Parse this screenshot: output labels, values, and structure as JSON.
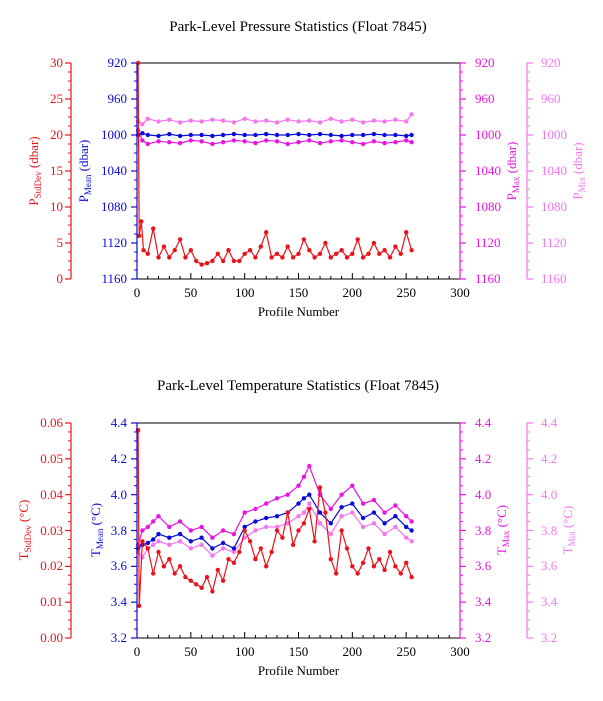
{
  "charts": [
    {
      "title": "Park-Level Pressure Statistics (Float 7845)",
      "xlabel": "Profile Number",
      "xticks": [
        "0",
        "50",
        "100",
        "150",
        "200",
        "250",
        "300"
      ],
      "left_outer_axis": {
        "label_main": "P",
        "label_sub": "StdDev",
        "label_unit": " (dbar)",
        "ticks": [
          "30",
          "25",
          "20",
          "15",
          "10",
          "5",
          "0"
        ],
        "color": "#e8141c"
      },
      "left_inner_axis": {
        "label_main": "P",
        "label_sub": "Mean",
        "label_unit": " (dbar)",
        "ticks": [
          "920",
          "960",
          "1000",
          "1040",
          "1080",
          "1120",
          "1160"
        ],
        "color": "#0a0ad8"
      },
      "right_inner_axis": {
        "label_main": "P",
        "label_sub": "Max",
        "label_unit": " (dbar)",
        "ticks": [
          "920",
          "960",
          "1000",
          "1040",
          "1080",
          "1120",
          "1160"
        ],
        "color": "#e815e0"
      },
      "right_outer_axis": {
        "label_main": "P",
        "label_sub": "Min",
        "label_unit": " (dbar)",
        "ticks": [
          "920",
          "960",
          "1000",
          "1040",
          "1080",
          "1120",
          "1160"
        ],
        "color": "#f576f0"
      }
    },
    {
      "title": "Park-Level Temperature Statistics (Float 7845)",
      "xlabel": "Profile Number",
      "xticks": [
        "0",
        "50",
        "100",
        "150",
        "200",
        "250",
        "300"
      ],
      "left_outer_axis": {
        "label_main": "T",
        "label_sub": "StdDev",
        "label_unit": " (°C)",
        "ticks": [
          "0.06",
          "0.05",
          "0.04",
          "0.03",
          "0.02",
          "0.01",
          "0.00"
        ],
        "color": "#e8141c"
      },
      "left_inner_axis": {
        "label_main": "T",
        "label_sub": "Mean",
        "label_unit": " (°C)",
        "ticks": [
          "4.4",
          "4.2",
          "4.0",
          "3.8",
          "3.6",
          "3.4",
          "3.2"
        ],
        "color": "#0a0ad8"
      },
      "right_inner_axis": {
        "label_main": "T",
        "label_sub": "Max",
        "label_unit": " (°C)",
        "ticks": [
          "4.4",
          "4.2",
          "4.0",
          "3.8",
          "3.6",
          "3.4",
          "3.2"
        ],
        "color": "#e815e0"
      },
      "right_outer_axis": {
        "label_main": "T",
        "label_sub": "Min",
        "label_unit": " (°C)",
        "ticks": [
          "4.4",
          "4.2",
          "4.0",
          "3.8",
          "3.6",
          "3.4",
          "3.2"
        ],
        "color": "#f576f0"
      }
    }
  ],
  "chart_data": [
    {
      "type": "line",
      "title": "Park-Level Pressure Statistics (Float 7845)",
      "xlabel": "Profile Number",
      "xlim": [
        0,
        300
      ],
      "series": [
        {
          "name": "P StdDev (dbar)",
          "axis": "StdDev",
          "ylim": [
            0,
            30
          ],
          "color": "#e8141c",
          "x": [
            1,
            2,
            4,
            6,
            10,
            15,
            20,
            25,
            30,
            35,
            40,
            45,
            50,
            55,
            60,
            65,
            70,
            75,
            80,
            85,
            90,
            95,
            100,
            105,
            110,
            115,
            120,
            125,
            130,
            135,
            140,
            145,
            150,
            155,
            160,
            165,
            170,
            175,
            180,
            185,
            190,
            195,
            200,
            205,
            210,
            215,
            220,
            225,
            230,
            235,
            240,
            245,
            250,
            255
          ],
          "values": [
            30,
            6,
            8,
            4,
            3.5,
            7,
            3,
            4.5,
            3,
            4,
            5.5,
            3,
            4,
            2.5,
            2,
            2.2,
            2.5,
            3.5,
            2.5,
            4,
            2.5,
            2.5,
            3.5,
            4,
            3,
            4.5,
            6.5,
            3,
            3.5,
            3,
            4.5,
            3,
            3.5,
            5.5,
            4,
            3,
            3.5,
            5,
            3,
            3.5,
            4,
            3,
            3.5,
            5.5,
            3,
            3.5,
            5,
            3.5,
            4,
            3,
            4.5,
            3.5,
            6.5,
            4
          ]
        },
        {
          "name": "P Mean (dbar)",
          "axis": "Mean",
          "ylim": [
            1160,
            920
          ],
          "color": "#0a0ad8",
          "x": [
            1,
            5,
            10,
            20,
            30,
            40,
            50,
            60,
            70,
            80,
            90,
            100,
            110,
            120,
            130,
            140,
            150,
            160,
            170,
            180,
            190,
            200,
            210,
            220,
            230,
            240,
            250,
            255
          ],
          "values": [
            1000,
            998,
            1000,
            1001,
            999,
            1001,
            1000,
            1000,
            1001,
            1000,
            999,
            1000,
            1000,
            999,
            1000,
            1000,
            999,
            1000,
            999,
            1000,
            1001,
            1000,
            1000,
            999,
            1000,
            1000,
            1001,
            1000
          ]
        },
        {
          "name": "P Max (dbar)",
          "axis": "Max",
          "ylim": [
            1160,
            920
          ],
          "color": "#e815e0",
          "x": [
            1,
            5,
            10,
            20,
            30,
            40,
            50,
            60,
            70,
            80,
            90,
            100,
            110,
            120,
            130,
            140,
            150,
            160,
            170,
            180,
            190,
            200,
            210,
            220,
            230,
            240,
            250,
            255
          ],
          "values": [
            995,
            1006,
            1010,
            1007,
            1008,
            1009,
            1006,
            1007,
            1010,
            1008,
            1006,
            1007,
            1009,
            1006,
            1007,
            1010,
            1008,
            1006,
            1009,
            1007,
            1006,
            1008,
            1010,
            1007,
            1009,
            1008,
            1006,
            1008
          ]
        },
        {
          "name": "P Min (dbar)",
          "axis": "Min",
          "ylim": [
            1160,
            920
          ],
          "color": "#f576f0",
          "x": [
            1,
            5,
            10,
            20,
            30,
            40,
            50,
            60,
            70,
            80,
            90,
            100,
            110,
            120,
            130,
            140,
            150,
            160,
            170,
            180,
            190,
            200,
            210,
            220,
            230,
            240,
            250,
            255
          ],
          "values": [
            985,
            988,
            982,
            985,
            983,
            986,
            984,
            985,
            983,
            984,
            986,
            982,
            985,
            984,
            986,
            983,
            985,
            984,
            986,
            982,
            985,
            983,
            986,
            984,
            985,
            983,
            985,
            977
          ]
        }
      ]
    },
    {
      "type": "line",
      "title": "Park-Level Temperature Statistics (Float 7845)",
      "xlabel": "Profile Number",
      "xlim": [
        0,
        300
      ],
      "series": [
        {
          "name": "T StdDev (°C)",
          "axis": "StdDev",
          "ylim": [
            0,
            0.06
          ],
          "color": "#e8141c",
          "x": [
            1,
            2,
            5,
            10,
            15,
            20,
            25,
            30,
            35,
            40,
            45,
            50,
            55,
            60,
            65,
            70,
            75,
            80,
            85,
            90,
            95,
            100,
            105,
            110,
            115,
            120,
            125,
            130,
            135,
            140,
            145,
            150,
            155,
            160,
            165,
            170,
            175,
            180,
            185,
            190,
            195,
            200,
            205,
            210,
            215,
            220,
            225,
            230,
            235,
            240,
            245,
            250,
            255
          ],
          "values": [
            0.058,
            0.009,
            0.027,
            0.025,
            0.018,
            0.024,
            0.02,
            0.022,
            0.018,
            0.02,
            0.017,
            0.016,
            0.015,
            0.014,
            0.017,
            0.013,
            0.019,
            0.016,
            0.022,
            0.021,
            0.024,
            0.03,
            0.027,
            0.022,
            0.025,
            0.02,
            0.024,
            0.03,
            0.028,
            0.035,
            0.026,
            0.03,
            0.032,
            0.036,
            0.027,
            0.042,
            0.035,
            0.022,
            0.018,
            0.03,
            0.025,
            0.02,
            0.018,
            0.021,
            0.025,
            0.02,
            0.022,
            0.019,
            0.024,
            0.02,
            0.018,
            0.021,
            0.017
          ]
        },
        {
          "name": "T Mean (°C)",
          "axis": "Mean",
          "ylim": [
            3.2,
            4.4
          ],
          "color": "#0a0ad8",
          "x": [
            1,
            5,
            10,
            15,
            20,
            30,
            40,
            50,
            60,
            70,
            80,
            90,
            100,
            110,
            120,
            130,
            140,
            150,
            155,
            160,
            170,
            180,
            190,
            200,
            210,
            220,
            230,
            240,
            250,
            255
          ],
          "values": [
            3.7,
            3.72,
            3.73,
            3.75,
            3.78,
            3.76,
            3.78,
            3.74,
            3.76,
            3.7,
            3.73,
            3.7,
            3.82,
            3.85,
            3.87,
            3.88,
            3.9,
            3.95,
            3.98,
            4.0,
            3.9,
            3.84,
            3.93,
            3.95,
            3.87,
            3.9,
            3.84,
            3.88,
            3.82,
            3.8
          ]
        },
        {
          "name": "T Max (°C)",
          "axis": "Max",
          "ylim": [
            3.2,
            4.4
          ],
          "color": "#e815e0",
          "x": [
            1,
            5,
            10,
            15,
            20,
            30,
            40,
            50,
            60,
            70,
            80,
            90,
            100,
            110,
            120,
            130,
            140,
            150,
            155,
            160,
            170,
            180,
            190,
            200,
            210,
            220,
            230,
            240,
            250,
            255
          ],
          "values": [
            3.72,
            3.8,
            3.82,
            3.85,
            3.88,
            3.82,
            3.85,
            3.8,
            3.82,
            3.76,
            3.8,
            3.78,
            3.9,
            3.92,
            3.95,
            3.98,
            4.0,
            4.05,
            4.1,
            4.16,
            4.0,
            3.92,
            4.0,
            4.05,
            3.95,
            3.97,
            3.9,
            3.94,
            3.88,
            3.85
          ]
        },
        {
          "name": "T Min (°C)",
          "axis": "Min",
          "ylim": [
            3.2,
            4.4
          ],
          "color": "#f576f0",
          "x": [
            1,
            5,
            10,
            15,
            20,
            30,
            40,
            50,
            60,
            70,
            80,
            90,
            100,
            110,
            120,
            130,
            140,
            150,
            155,
            160,
            170,
            180,
            190,
            200,
            210,
            220,
            230,
            240,
            250,
            255
          ],
          "values": [
            3.68,
            3.65,
            3.7,
            3.72,
            3.74,
            3.72,
            3.74,
            3.7,
            3.72,
            3.66,
            3.7,
            3.68,
            3.76,
            3.8,
            3.82,
            3.82,
            3.84,
            3.88,
            3.9,
            3.95,
            3.84,
            3.78,
            3.88,
            3.9,
            3.82,
            3.84,
            3.78,
            3.82,
            3.76,
            3.74
          ]
        }
      ]
    }
  ]
}
